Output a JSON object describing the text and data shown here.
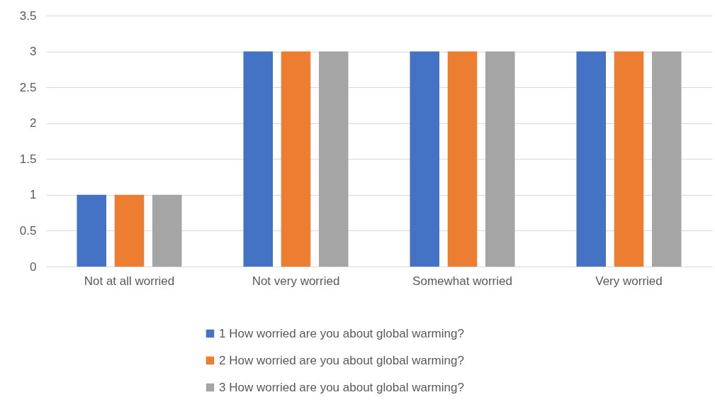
{
  "chart_data": {
    "type": "bar",
    "categories": [
      "Not at all worried",
      "Not very worried",
      "Somewhat worried",
      "Very worried"
    ],
    "series": [
      {
        "name": "1 How worried are you about global warming?",
        "color": "#4472c4",
        "values": [
          1,
          3,
          3,
          3
        ]
      },
      {
        "name": "2 How worried are you about global warming?",
        "color": "#ed7d31",
        "values": [
          1,
          3,
          3,
          3
        ]
      },
      {
        "name": "3 How worried are you about global warming?",
        "color": "#a5a5a5",
        "values": [
          1,
          3,
          3,
          3
        ]
      }
    ],
    "ylim": [
      0,
      3.5
    ],
    "yticks": [
      0,
      0.5,
      1,
      1.5,
      2,
      2.5,
      3,
      3.5
    ],
    "grid": "y",
    "legend": "bottom"
  }
}
